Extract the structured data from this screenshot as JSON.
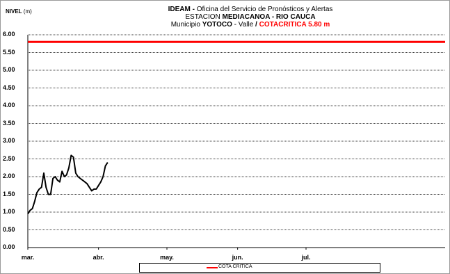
{
  "header": {
    "ylabel_bold": "NIVEL",
    "ylabel_unit": "(m)",
    "line1_bold": "IDEAM -",
    "line1_rest": " Oficina del Servicio de Pronósticos y Alertas",
    "line2_prefix": "ESTACION ",
    "line2_bold": "MEDIACANOA - RIO CAUCA",
    "line3_prefix": "Municipio ",
    "line3_bold": "YOTOCO",
    "line3_mid": " - Valle  ",
    "line3_slash": "/",
    "line3_red": " COTACRITICA  5.80 m"
  },
  "legend": {
    "label": "COTA CRITICA"
  },
  "colors": {
    "critical": "#ff0000",
    "series": "#000000",
    "grid": "#000000"
  },
  "chart_data": {
    "type": "line",
    "title": "IDEAM - Oficina del Servicio de Pronósticos y Alertas / ESTACION MEDIACANOA - RIO CAUCA / Municipio YOTOCO - Valle / COTACRITICA 5.80 m",
    "ylabel": "NIVEL (m)",
    "xlabel": "",
    "ylim": [
      0,
      6
    ],
    "yticks": [
      "0.00",
      "0.50",
      "1.00",
      "1.50",
      "2.00",
      "2.50",
      "3.00",
      "3.50",
      "4.00",
      "4.50",
      "5.00",
      "5.50",
      "6.00"
    ],
    "xticks": [
      "mar.",
      "abr.",
      "may.",
      "jun.",
      "jul."
    ],
    "xlim": [
      "2010-03-01",
      "2010-08-31"
    ],
    "grid": true,
    "legend_position": "bottom",
    "critical_level": 5.8,
    "series": [
      {
        "name": "",
        "x": [
          "2010-03-01",
          "2010-03-02",
          "2010-03-03",
          "2010-03-04",
          "2010-03-05",
          "2010-03-06",
          "2010-03-07",
          "2010-03-08",
          "2010-03-09",
          "2010-03-10",
          "2010-03-11",
          "2010-03-12",
          "2010-03-13",
          "2010-03-14",
          "2010-03-15",
          "2010-03-16",
          "2010-03-17",
          "2010-03-18",
          "2010-03-19",
          "2010-03-20",
          "2010-03-21",
          "2010-03-22",
          "2010-03-23",
          "2010-03-24",
          "2010-03-25",
          "2010-03-26",
          "2010-03-27",
          "2010-03-28",
          "2010-03-29",
          "2010-03-30",
          "2010-03-31",
          "2010-04-01",
          "2010-04-02",
          "2010-04-03",
          "2010-04-04",
          "2010-04-05"
        ],
        "values": [
          0.95,
          1.05,
          1.1,
          1.3,
          1.55,
          1.65,
          1.7,
          2.1,
          1.7,
          1.5,
          1.5,
          1.95,
          2.0,
          1.9,
          1.85,
          2.15,
          2.0,
          2.05,
          2.25,
          2.6,
          2.55,
          2.1,
          2.0,
          1.95,
          1.9,
          1.85,
          1.8,
          1.7,
          1.6,
          1.65,
          1.65,
          1.75,
          1.85,
          2.0,
          2.3,
          2.4
        ]
      },
      {
        "name": "COTA CRITICA",
        "x": [
          "2010-03-01",
          "2010-08-31"
        ],
        "values": [
          5.8,
          5.8
        ]
      }
    ]
  }
}
